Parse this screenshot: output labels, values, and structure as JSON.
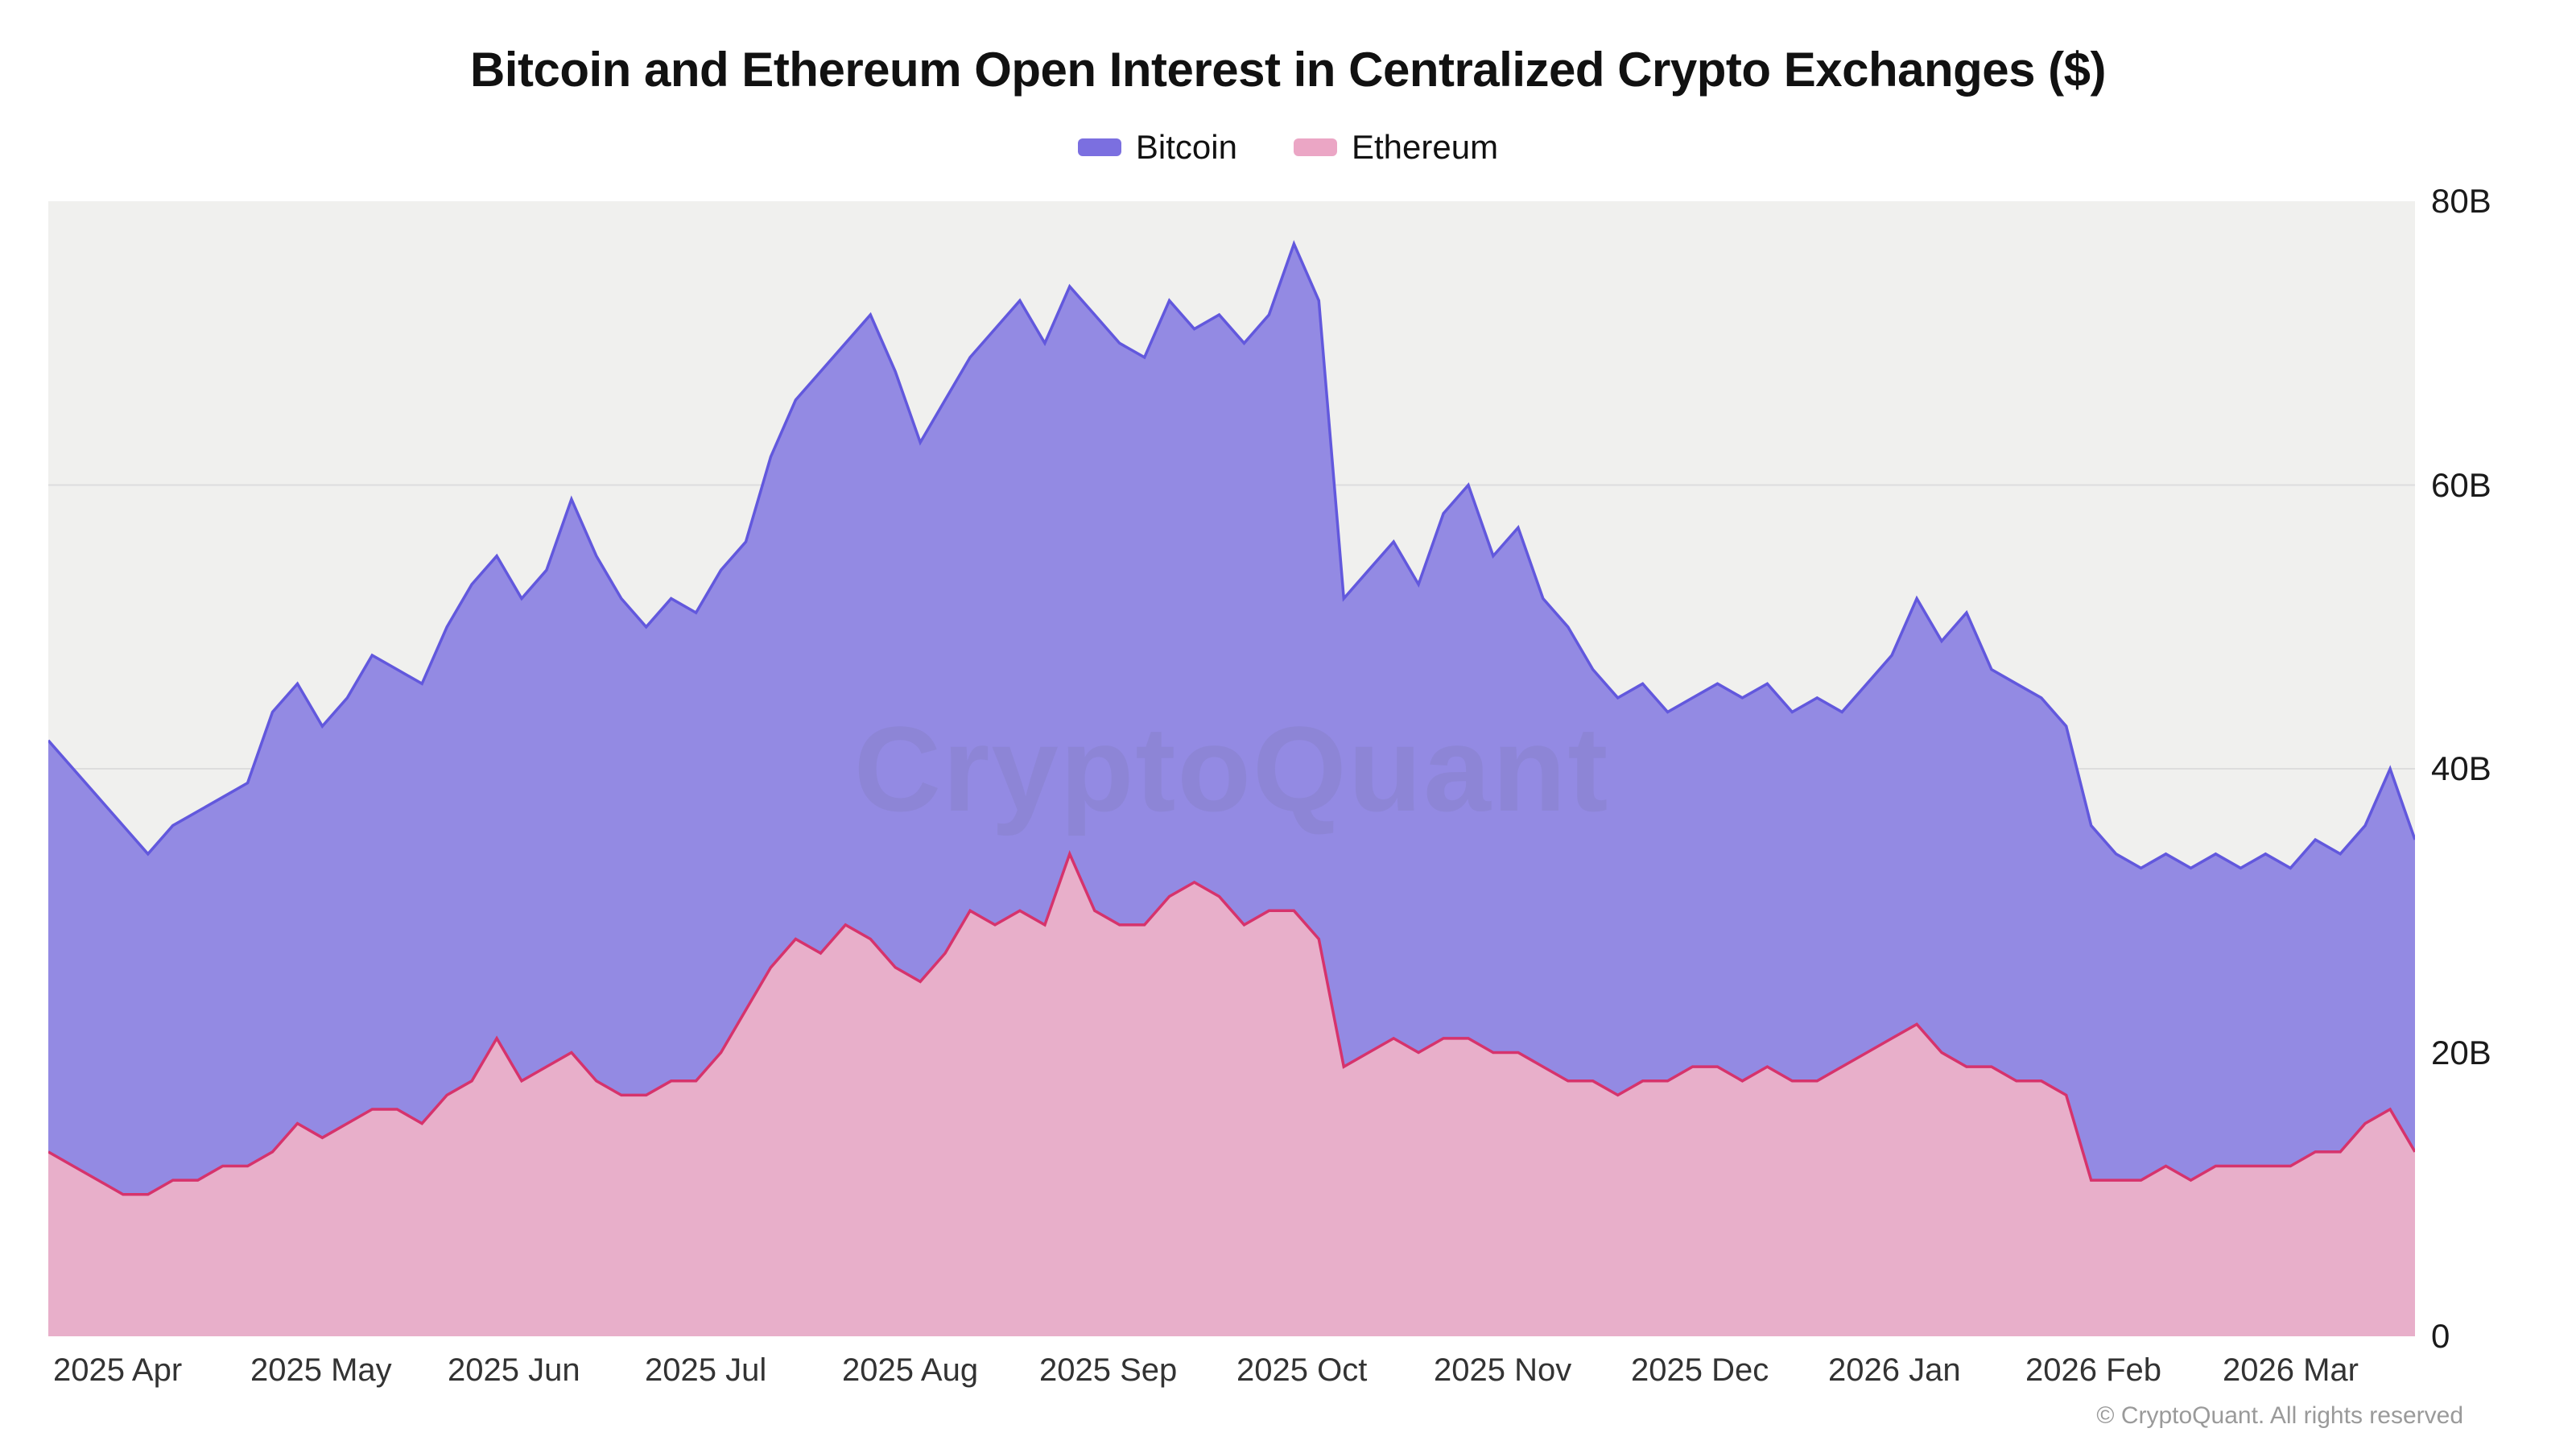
{
  "chart_data": {
    "type": "area",
    "title": "Bitcoin and Ethereum Open Interest in Centralized Crypto Exchanges ($)",
    "watermark": "CryptoQuant",
    "footer": "© CryptoQuant. All rights reserved",
    "legend_position": "top",
    "grid": true,
    "ylim": [
      0,
      80
    ],
    "y_ticks": [
      {
        "value": 0,
        "label": "0"
      },
      {
        "value": 20,
        "label": "20B"
      },
      {
        "value": 40,
        "label": "40B"
      },
      {
        "value": 60,
        "label": "60B"
      },
      {
        "value": 80,
        "label": "80B"
      }
    ],
    "x_labels": [
      "2025 Apr",
      "2025 May",
      "2025 Jun",
      "2025 Jul",
      "2025 Aug",
      "2025 Sep",
      "2025 Oct",
      "2025 Nov",
      "2025 Dec",
      "2026 Jan",
      "2026 Feb",
      "2026 Mar"
    ],
    "colors": {
      "bitcoin_fill": "#938ae3",
      "bitcoin_stroke": "#6258dd",
      "ethereum_fill": "#e8afca",
      "ethereum_stroke": "#d6336c",
      "plot_background": "#f0f0ee",
      "gridline": "#dddddd"
    },
    "series": [
      {
        "name": "Bitcoin",
        "values": [
          42,
          40,
          38,
          36,
          34,
          36,
          37,
          38,
          39,
          44,
          46,
          43,
          45,
          48,
          47,
          46,
          50,
          53,
          55,
          52,
          54,
          59,
          55,
          52,
          50,
          52,
          51,
          54,
          56,
          62,
          66,
          68,
          70,
          72,
          68,
          63,
          66,
          69,
          71,
          73,
          70,
          74,
          72,
          70,
          69,
          73,
          71,
          72,
          70,
          72,
          77,
          73,
          52,
          54,
          56,
          53,
          58,
          60,
          55,
          57,
          52,
          50,
          47,
          45,
          46,
          44,
          45,
          46,
          45,
          46,
          44,
          45,
          44,
          46,
          48,
          52,
          49,
          51,
          47,
          46,
          45,
          43,
          36,
          34,
          33,
          34,
          33,
          34,
          33,
          34,
          33,
          35,
          34,
          36,
          40,
          35
        ]
      },
      {
        "name": "Ethereum",
        "values": [
          13,
          12,
          11,
          10,
          10,
          11,
          11,
          12,
          12,
          13,
          15,
          14,
          15,
          16,
          16,
          15,
          17,
          18,
          21,
          18,
          19,
          20,
          18,
          17,
          17,
          18,
          18,
          20,
          23,
          26,
          28,
          27,
          29,
          28,
          26,
          25,
          27,
          30,
          29,
          30,
          29,
          34,
          30,
          29,
          29,
          31,
          32,
          31,
          29,
          30,
          30,
          28,
          19,
          20,
          21,
          20,
          21,
          21,
          20,
          20,
          19,
          18,
          18,
          17,
          18,
          18,
          19,
          19,
          18,
          19,
          18,
          18,
          19,
          20,
          21,
          22,
          20,
          19,
          19,
          18,
          18,
          17,
          11,
          11,
          11,
          12,
          11,
          12,
          12,
          12,
          12,
          13,
          13,
          15,
          16,
          13
        ]
      }
    ]
  }
}
